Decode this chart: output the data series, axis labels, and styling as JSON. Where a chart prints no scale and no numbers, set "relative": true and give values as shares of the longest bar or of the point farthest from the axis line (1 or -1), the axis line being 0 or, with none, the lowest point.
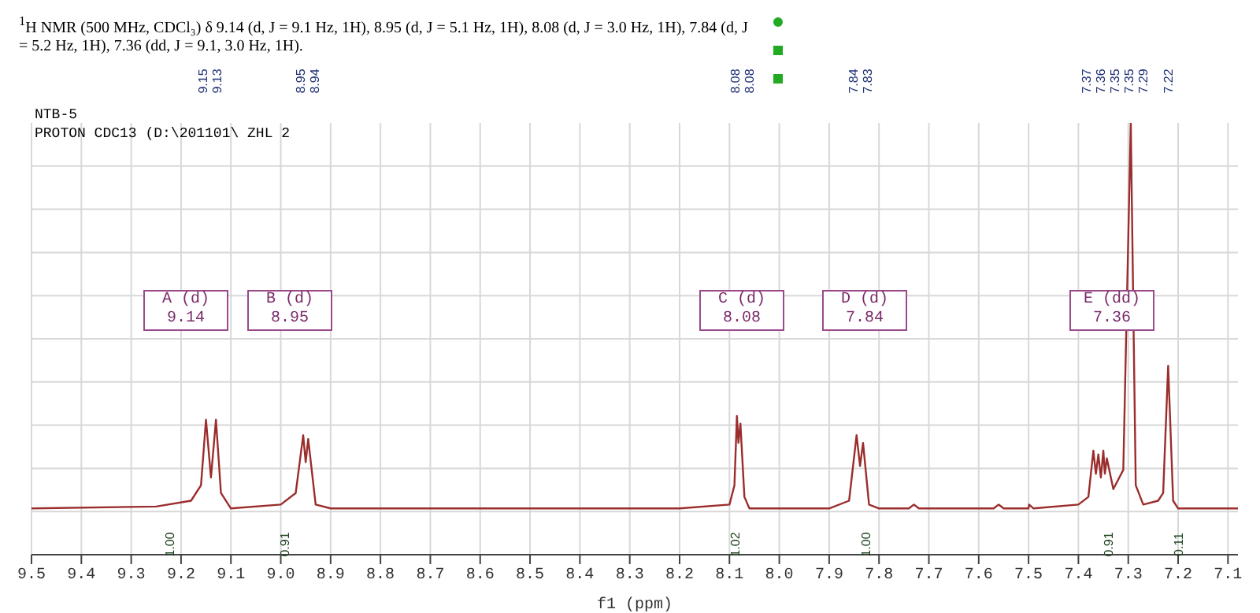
{
  "chart_data": {
    "type": "line",
    "title": "$^{1}$H NMR (500 MHz, CDCl₃) δ 9.14 (d, J = 9.1 Hz, 1H), 8.95 (d, J = 5.1 Hz, 1H), 8.08 (d, J = 3.0 Hz, 1H), 7.84 (d, J = 5.2 Hz, 1H), 7.36 (dd, J = 9.1, 3.0 Hz, 1H).",
    "xlabel": "f1 (ppm)",
    "relative": true,
    "grid": true,
    "xlim": [
      9.5,
      7.08
    ],
    "xticks": [
      9.5,
      9.4,
      9.3,
      9.2,
      9.1,
      {
        "value": 9,
        "label": "9.0"
      },
      8.9,
      8.8,
      8.7,
      8.6,
      8.5,
      8.4,
      8.3,
      8.2,
      8.1,
      {
        "value": 8,
        "label": "8.0"
      },
      7.9,
      7.8,
      7.7,
      7.6,
      7.5,
      7.4,
      7.3,
      7.2,
      7.1
    ],
    "series": [
      {
        "color": "#9b2d2d",
        "x": [
          9.5,
          9.25,
          9.18,
          9.16,
          9.15,
          9.14,
          9.13,
          9.12,
          9.1,
          9.0,
          8.97,
          8.955,
          8.95,
          8.945,
          8.93,
          8.9,
          8.2,
          8.1,
          8.09,
          8.085,
          8.082,
          8.078,
          8.07,
          8.06,
          7.9,
          7.86,
          7.845,
          7.838,
          7.832,
          7.82,
          7.8,
          7.74,
          7.73,
          7.72,
          7.57,
          7.56,
          7.55,
          7.5,
          7.499,
          7.49,
          7.4,
          7.38,
          7.37,
          7.365,
          7.36,
          7.355,
          7.35,
          7.347,
          7.343,
          7.33,
          7.31,
          7.295,
          7.285,
          7.27,
          7.24,
          7.23,
          7.22,
          7.21,
          7.2,
          7.08
        ],
        "values": [
          0,
          0.005,
          0.02,
          0.06,
          0.23,
          0.08,
          0.23,
          0.04,
          0,
          0.01,
          0.04,
          0.19,
          0.12,
          0.18,
          0.01,
          0,
          0,
          0.01,
          0.06,
          0.24,
          0.17,
          0.22,
          0.03,
          0,
          0,
          0.02,
          0.19,
          0.11,
          0.17,
          0.01,
          0,
          0,
          0.01,
          0,
          0,
          0.01,
          0,
          0,
          0.01,
          0,
          0.01,
          0.03,
          0.15,
          0.09,
          0.14,
          0.08,
          0.15,
          0.09,
          0.13,
          0.05,
          0.1,
          1,
          0.06,
          0.01,
          0.02,
          0.04,
          0.37,
          0.02,
          0,
          0
        ]
      }
    ],
    "annotations": [
      "NTB-5",
      "PROTON CDC13 (D:\\201101\\ ZHL 2",
      "A (d)\n9.14",
      "B (d)\n8.95",
      "C (d)\n8.08",
      "D (d)\n7.84",
      "E (dd)\n7.36",
      "1.00",
      "0.91",
      "1.02",
      "1.00",
      "0.91",
      "0.11",
      "9.15",
      "9.13",
      "8.95",
      "8.94",
      "8.08",
      "8.08",
      "7.84",
      "7.83",
      "7.37",
      "7.36",
      "7.35",
      "7.35",
      "7.29",
      "7.22"
    ]
  }
}
